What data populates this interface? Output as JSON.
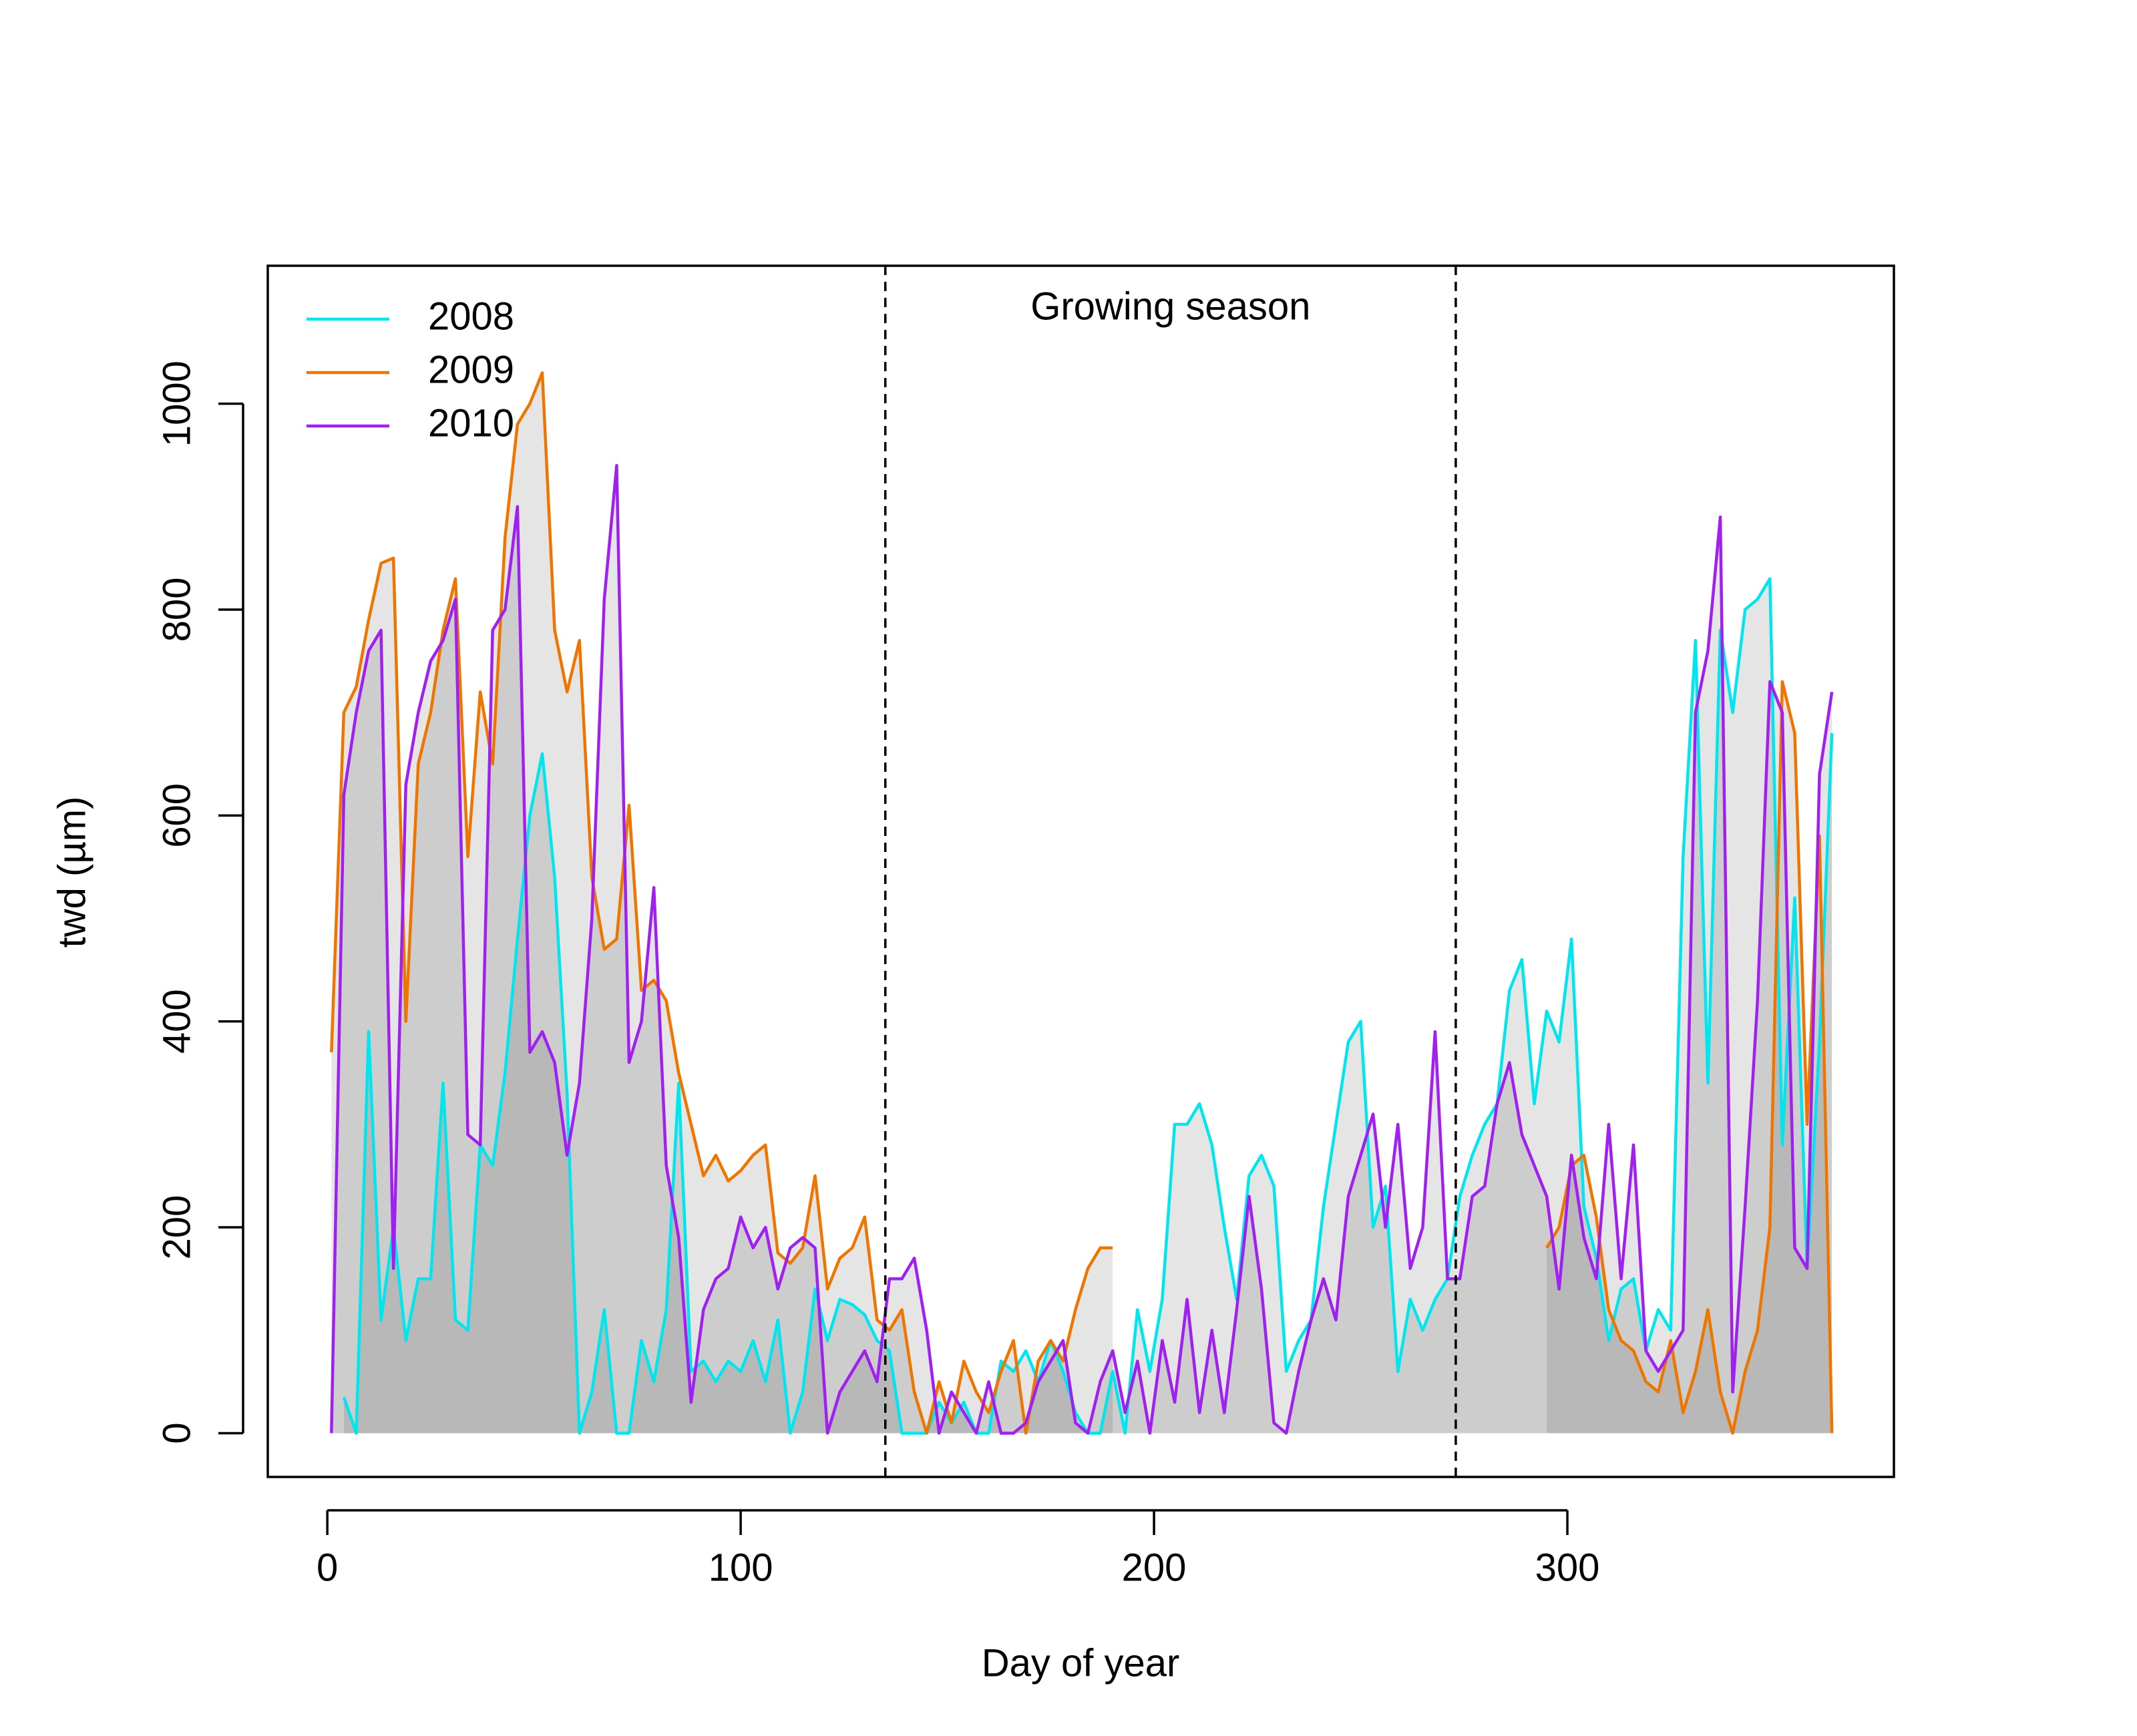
{
  "chart_data": {
    "type": "line",
    "xlabel": "Day of year",
    "ylabel": "twd (µm)",
    "annotation": "Growing season",
    "vlines": [
      135,
      273
    ],
    "legend": "top-left",
    "area_fill": "#000000",
    "xlim": [
      -14.4,
      379
    ],
    "ylim": [
      -42.5,
      1134
    ],
    "xticks": [
      0,
      100,
      200,
      300
    ],
    "yticks": [
      0,
      200,
      400,
      600,
      800,
      1000
    ],
    "x": [
      1,
      4,
      7,
      10,
      13,
      16,
      19,
      22,
      25,
      28,
      31,
      34,
      37,
      40,
      43,
      46,
      49,
      52,
      55,
      58,
      61,
      64,
      67,
      70,
      73,
      76,
      79,
      82,
      85,
      88,
      91,
      94,
      97,
      100,
      103,
      106,
      109,
      112,
      115,
      118,
      121,
      124,
      127,
      130,
      133,
      136,
      139,
      142,
      145,
      148,
      151,
      154,
      157,
      160,
      163,
      166,
      169,
      172,
      175,
      178,
      181,
      184,
      187,
      190,
      193,
      196,
      199,
      202,
      205,
      208,
      211,
      214,
      217,
      220,
      223,
      226,
      229,
      232,
      235,
      238,
      241,
      244,
      247,
      250,
      253,
      256,
      259,
      262,
      265,
      268,
      271,
      274,
      277,
      280,
      283,
      286,
      289,
      292,
      295,
      298,
      301,
      304,
      307,
      310,
      313,
      316,
      319,
      322,
      325,
      328,
      331,
      334,
      337,
      340,
      343,
      346,
      349,
      352,
      355,
      358,
      361,
      364
    ],
    "series": [
      {
        "name": "2008",
        "color": "#00e5ee",
        "values": [
          null,
          35,
          0,
          390,
          110,
          200,
          90,
          150,
          150,
          340,
          110,
          100,
          280,
          260,
          350,
          480,
          600,
          660,
          540,
          330,
          0,
          40,
          120,
          0,
          0,
          90,
          50,
          120,
          340,
          60,
          70,
          50,
          70,
          60,
          90,
          50,
          110,
          0,
          40,
          140,
          90,
          130,
          125,
          115,
          90,
          80,
          0,
          0,
          0,
          30,
          10,
          30,
          0,
          0,
          70,
          60,
          80,
          50,
          90,
          60,
          20,
          0,
          0,
          60,
          0,
          120,
          60,
          130,
          300,
          300,
          320,
          280,
          200,
          130,
          250,
          270,
          240,
          60,
          90,
          110,
          220,
          300,
          380,
          400,
          200,
          240,
          60,
          130,
          100,
          130,
          150,
          230,
          270,
          300,
          320,
          430,
          460,
          320,
          410,
          380,
          480,
          220,
          170,
          90,
          140,
          150,
          80,
          120,
          100,
          560,
          770,
          340,
          780,
          700,
          800,
          810,
          830,
          280,
          520,
          160,
          380,
          680
        ]
      },
      {
        "name": "2009",
        "color": "#ee7600",
        "values": [
          370,
          700,
          725,
          790,
          845,
          850,
          400,
          650,
          700,
          780,
          830,
          560,
          720,
          650,
          870,
          980,
          1000,
          1030,
          780,
          720,
          770,
          540,
          470,
          480,
          610,
          430,
          440,
          420,
          350,
          300,
          250,
          270,
          245,
          255,
          270,
          280,
          175,
          165,
          180,
          250,
          140,
          170,
          180,
          210,
          110,
          100,
          120,
          40,
          0,
          50,
          10,
          70,
          40,
          20,
          60,
          90,
          0,
          70,
          90,
          70,
          120,
          160,
          180,
          180,
          null,
          null,
          null,
          null,
          null,
          null,
          null,
          null,
          null,
          null,
          null,
          null,
          null,
          null,
          null,
          null,
          null,
          null,
          null,
          null,
          null,
          null,
          null,
          null,
          null,
          null,
          null,
          null,
          null,
          null,
          null,
          null,
          null,
          null,
          180,
          200,
          260,
          270,
          210,
          120,
          90,
          80,
          50,
          40,
          90,
          20,
          60,
          120,
          40,
          0,
          60,
          100,
          200,
          730,
          680,
          300,
          580,
          0
        ]
      },
      {
        "name": "2010",
        "color": "#a020f0",
        "values": [
          0,
          620,
          700,
          760,
          780,
          160,
          630,
          700,
          750,
          770,
          810,
          290,
          280,
          780,
          800,
          900,
          370,
          390,
          360,
          270,
          340,
          500,
          810,
          940,
          360,
          400,
          530,
          260,
          190,
          30,
          120,
          150,
          160,
          210,
          180,
          200,
          140,
          180,
          190,
          180,
          0,
          40,
          60,
          80,
          50,
          150,
          150,
          170,
          100,
          0,
          40,
          20,
          0,
          50,
          0,
          0,
          10,
          50,
          70,
          90,
          10,
          0,
          50,
          80,
          20,
          70,
          0,
          90,
          30,
          130,
          20,
          100,
          20,
          120,
          230,
          140,
          10,
          0,
          60,
          110,
          150,
          110,
          230,
          270,
          310,
          200,
          300,
          160,
          200,
          390,
          150,
          150,
          230,
          240,
          320,
          360,
          290,
          260,
          230,
          140,
          270,
          190,
          150,
          300,
          150,
          280,
          80,
          60,
          80,
          100,
          700,
          760,
          890,
          40,
          220,
          420,
          730,
          700,
          180,
          160,
          640,
          720
        ]
      }
    ]
  }
}
